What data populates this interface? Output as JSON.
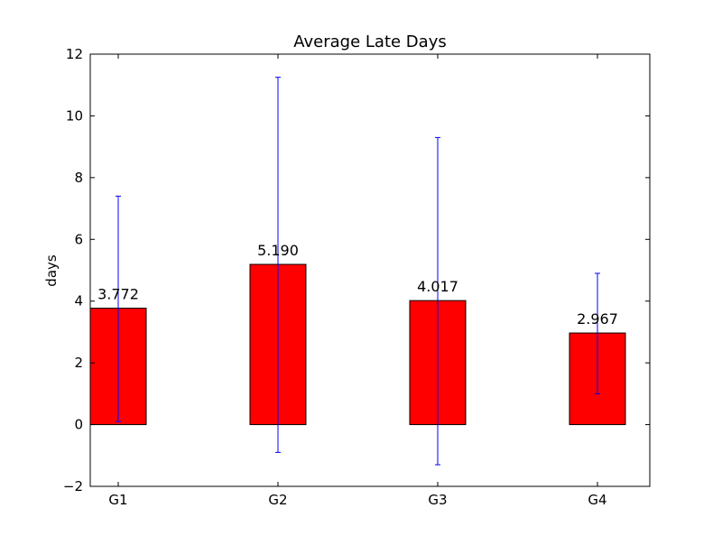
{
  "chart_data": {
    "type": "bar",
    "title": "Average Late Days",
    "xlabel": "",
    "ylabel": "days",
    "categories": [
      "G1",
      "G2",
      "G3",
      "G4"
    ],
    "values": [
      3.772,
      5.19,
      4.017,
      2.967
    ],
    "value_labels": [
      "3.772",
      "5.190",
      "4.017",
      "2.967"
    ],
    "error_low": [
      0.1,
      -0.9,
      -1.3,
      1.0
    ],
    "error_high": [
      7.4,
      11.25,
      9.3,
      4.9
    ],
    "ylim": [
      -2,
      12
    ],
    "yticks": [
      -2,
      0,
      2,
      4,
      6,
      8,
      10,
      12
    ],
    "ytick_labels": [
      "−2",
      "0",
      "2",
      "4",
      "6",
      "8",
      "10",
      "12"
    ],
    "grid": false,
    "colors": {
      "bar_fill": "#ff0000",
      "bar_edge": "#000000",
      "errorbar": "#0000ff"
    }
  }
}
